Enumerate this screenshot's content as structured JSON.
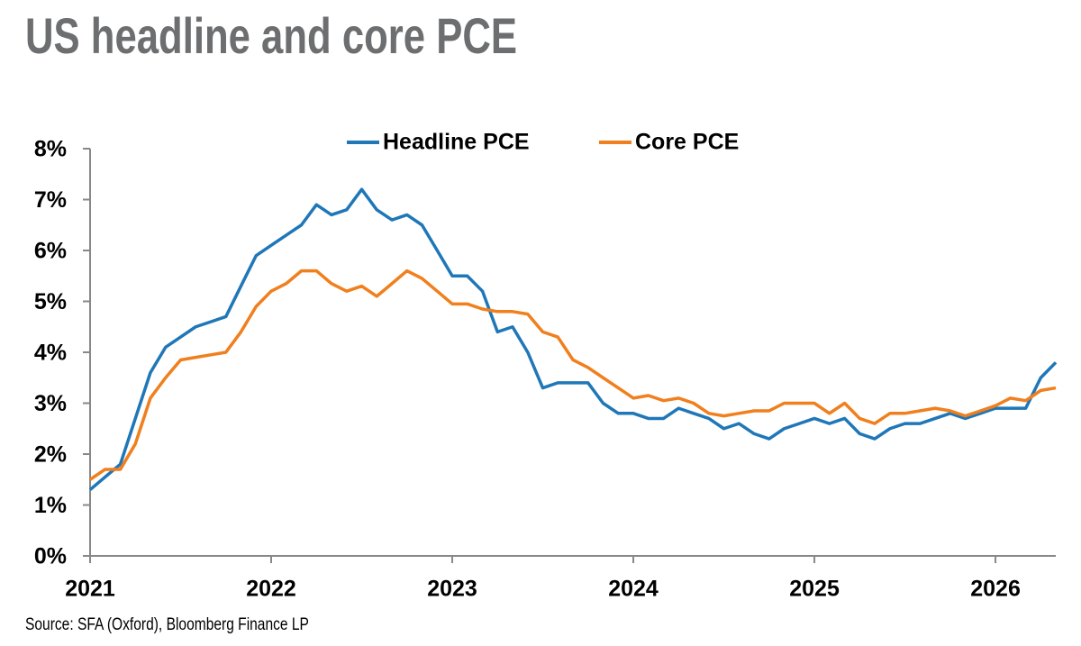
{
  "chart_data": {
    "type": "line",
    "title": "US headline and core PCE",
    "source": "Source: SFA (Oxford), Bloomberg Finance LP",
    "legend": "top",
    "grid": false,
    "x": [
      2021,
      2021.083,
      2021.167,
      2021.25,
      2021.333,
      2021.417,
      2021.5,
      2021.583,
      2021.667,
      2021.75,
      2021.833,
      2021.917,
      2022,
      2022.083,
      2022.167,
      2022.25,
      2022.333,
      2022.417,
      2022.5,
      2022.583,
      2022.667,
      2022.75,
      2022.833,
      2022.917,
      2023,
      2023.083,
      2023.167,
      2023.25,
      2023.333,
      2023.417,
      2023.5,
      2023.583,
      2023.667,
      2023.75,
      2023.833,
      2023.917,
      2024,
      2024.083,
      2024.167,
      2024.25,
      2024.333,
      2024.417,
      2024.5,
      2024.583,
      2024.667,
      2024.75,
      2024.833,
      2024.917,
      2025,
      2025.083,
      2025.167,
      2025.25,
      2025.333,
      2025.417,
      2025.5,
      2025.583,
      2025.667,
      2025.75,
      2025.833,
      2025.917,
      2026,
      2026.083,
      2026.167,
      2026.25,
      2026.333
    ],
    "series": [
      {
        "name": "Headline PCE",
        "color": "#1f77b8",
        "values": [
          1.3,
          1.55,
          1.8,
          2.7,
          3.6,
          4.1,
          4.3,
          4.5,
          4.6,
          4.7,
          5.3,
          5.9,
          6.1,
          6.3,
          6.5,
          6.9,
          6.7,
          6.8,
          7.2,
          6.8,
          6.6,
          6.7,
          6.5,
          6.0,
          5.5,
          5.5,
          5.2,
          4.4,
          4.5,
          4.0,
          3.3,
          3.4,
          3.4,
          3.4,
          3.0,
          2.8,
          2.8,
          2.7,
          2.7,
          2.9,
          2.8,
          2.7,
          2.5,
          2.6,
          2.4,
          2.3,
          2.5,
          2.6,
          2.7,
          2.6,
          2.7,
          2.4,
          2.3,
          2.5,
          2.6,
          2.6,
          2.7,
          2.8,
          2.7,
          2.8,
          2.9,
          2.9,
          2.9,
          3.5,
          3.8
        ]
      },
      {
        "name": "Core PCE",
        "color": "#f07f1d",
        "values": [
          1.5,
          1.7,
          1.7,
          2.2,
          3.1,
          3.5,
          3.85,
          3.9,
          3.95,
          4.0,
          4.4,
          4.9,
          5.2,
          5.35,
          5.6,
          5.6,
          5.35,
          5.2,
          5.3,
          5.1,
          5.35,
          5.6,
          5.45,
          5.2,
          4.95,
          4.95,
          4.85,
          4.8,
          4.8,
          4.75,
          4.4,
          4.3,
          3.85,
          3.7,
          3.5,
          3.3,
          3.1,
          3.15,
          3.05,
          3.1,
          3.0,
          2.8,
          2.75,
          2.8,
          2.85,
          2.85,
          3.0,
          3.0,
          3.0,
          2.8,
          3.0,
          2.7,
          2.6,
          2.8,
          2.8,
          2.85,
          2.9,
          2.85,
          2.75,
          2.85,
          2.95,
          3.1,
          3.05,
          3.25,
          3.3
        ]
      }
    ],
    "xlim": [
      2021,
      2026.333
    ],
    "xticks": [
      2021,
      2022,
      2023,
      2024,
      2025,
      2026
    ],
    "ylim": [
      0,
      8
    ],
    "yticks": [
      {
        "value": 0,
        "label": "0%"
      },
      {
        "value": 1,
        "label": "1%"
      },
      {
        "value": 2,
        "label": "2%"
      },
      {
        "value": 3,
        "label": "3%"
      },
      {
        "value": 4,
        "label": "4%"
      },
      {
        "value": 5,
        "label": "5%"
      },
      {
        "value": 6,
        "label": "6%"
      },
      {
        "value": 7,
        "label": "7%"
      },
      {
        "value": 8,
        "label": "8%"
      }
    ]
  }
}
